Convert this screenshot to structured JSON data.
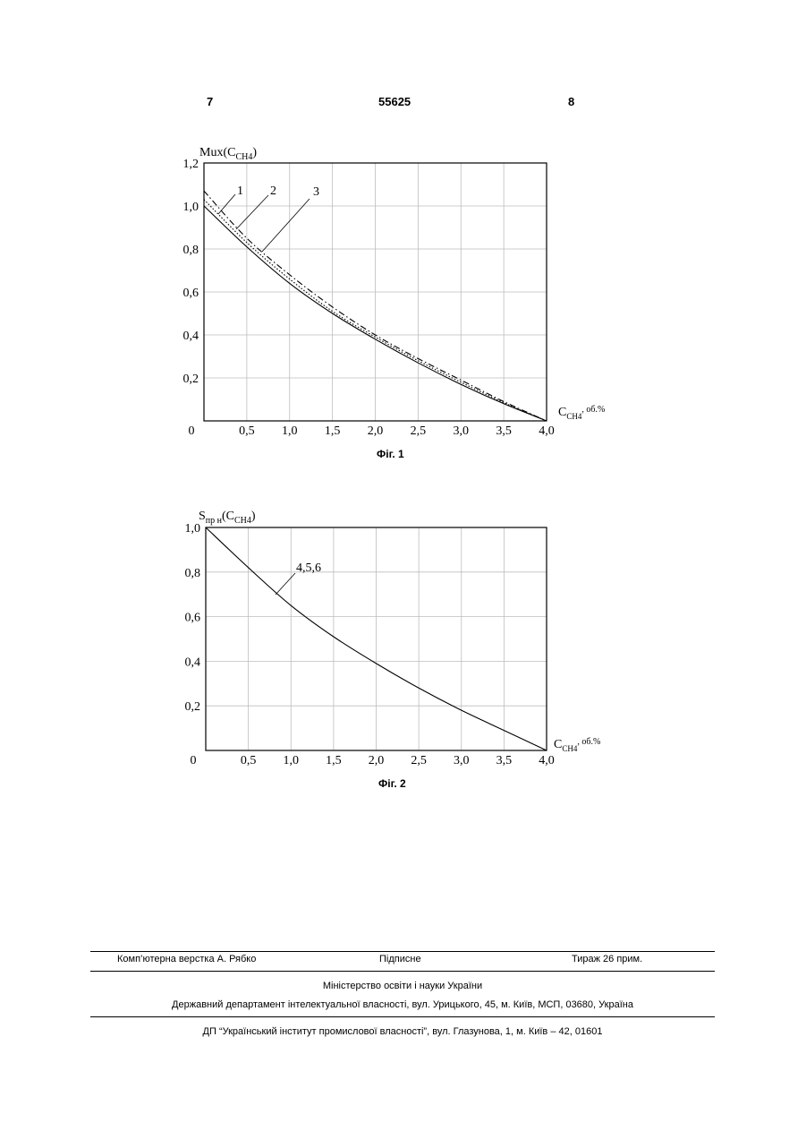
{
  "header": {
    "page_left": "7",
    "patent_number": "55625",
    "page_right": "8"
  },
  "chart_data": [
    {
      "type": "line",
      "caption": "Фіг. 1",
      "ylabel": "Mux(C",
      "ylabel_sub": "CH4",
      "ylabel_end": ")",
      "xlabel": "C",
      "xlabel_sub": "CH4",
      "xlabel_unit": ", об.%",
      "x_ticks": [
        "0",
        "0,5",
        "1,0",
        "1,5",
        "2,0",
        "2,5",
        "3,0",
        "3,5",
        "4,0"
      ],
      "y_ticks": [
        "0,2",
        "0,4",
        "0,6",
        "0,8",
        "1,0",
        "1,2"
      ],
      "xlim": [
        0,
        4.0
      ],
      "ylim": [
        0,
        1.2
      ],
      "grid": true,
      "series": [
        {
          "name": "1",
          "style": "solid",
          "x": [
            0,
            0.5,
            1.0,
            1.5,
            2.0,
            2.5,
            3.0,
            3.5,
            4.0
          ],
          "values": [
            1.0,
            0.81,
            0.64,
            0.5,
            0.38,
            0.27,
            0.17,
            0.08,
            0.0
          ]
        },
        {
          "name": "2",
          "style": "dotted",
          "x": [
            0,
            0.5,
            1.0,
            1.5,
            2.0,
            2.5,
            3.0,
            3.5,
            4.0
          ],
          "values": [
            1.03,
            0.83,
            0.66,
            0.51,
            0.39,
            0.28,
            0.18,
            0.085,
            0.0
          ]
        },
        {
          "name": "3",
          "style": "dashdot",
          "x": [
            0,
            0.5,
            1.0,
            1.5,
            2.0,
            2.5,
            3.0,
            3.5,
            4.0
          ],
          "values": [
            1.07,
            0.85,
            0.68,
            0.53,
            0.4,
            0.29,
            0.19,
            0.09,
            0.0
          ]
        }
      ]
    },
    {
      "type": "line",
      "caption": "Фіг. 2",
      "ylabel": "S",
      "ylabel_sub": "пр н",
      "ylabel_end": "(C",
      "ylabel_sub2": "CH4",
      "ylabel_end2": ")",
      "xlabel": "C",
      "xlabel_sub": "CH4",
      "xlabel_unit": ", об.%",
      "x_ticks": [
        "0",
        "0,5",
        "1,0",
        "1,5",
        "2,0",
        "2,5",
        "3,0",
        "3,5",
        "4,0"
      ],
      "y_ticks": [
        "0,2",
        "0,4",
        "0,6",
        "0,8",
        "1,0"
      ],
      "xlim": [
        0,
        4.0
      ],
      "ylim": [
        0,
        1.0
      ],
      "grid": true,
      "series": [
        {
          "name": "4,5,6",
          "style": "solid",
          "x": [
            0,
            0.5,
            1.0,
            1.5,
            2.0,
            2.5,
            3.0,
            3.5,
            4.0
          ],
          "values": [
            1.0,
            0.82,
            0.65,
            0.51,
            0.39,
            0.28,
            0.18,
            0.09,
            0.0
          ]
        }
      ]
    }
  ],
  "footer": {
    "layout": "Комп’ютерна верстка А. Рябко",
    "signed": "Підписне",
    "circulation": "Тираж 26 прим.",
    "ministry": "Міністерство освіти і науки України",
    "department": "Державний департамент інтелектуальної власності, вул. Урицького, 45, м. Київ, МСП, 03680, Україна",
    "institute": "ДП “Український інститут промислової власності”, вул. Глазунова, 1, м. Київ – 42, 01601"
  }
}
